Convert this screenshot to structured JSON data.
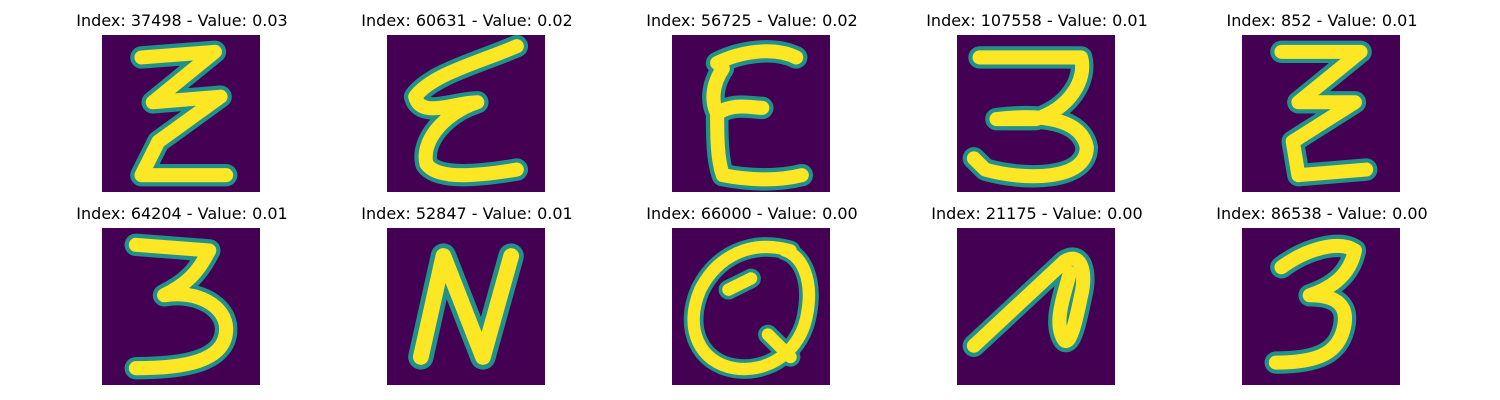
{
  "colors": {
    "background": "#ffffff",
    "image_background": "#440154",
    "stroke_core": "#fde725",
    "stroke_edge": "#21918c"
  },
  "panels": [
    {
      "title": "Index: 37498 - Value: 0.03",
      "glyph": "Z"
    },
    {
      "title": "Index: 60631 - Value: 0.02",
      "glyph": "E"
    },
    {
      "title": "Index: 56725 - Value: 0.02",
      "glyph": "E"
    },
    {
      "title": "Index: 107558 - Value: 0.01",
      "glyph": "3"
    },
    {
      "title": "Index: 852 - Value: 0.01",
      "glyph": "Z"
    },
    {
      "title": "Index: 64204 - Value: 0.01",
      "glyph": "3"
    },
    {
      "title": "Index: 52847 - Value: 0.01",
      "glyph": "N"
    },
    {
      "title": "Index: 66000 - Value: 0.00",
      "glyph": "Q"
    },
    {
      "title": "Index: 21175 - Value: 0.00",
      "glyph": "A"
    },
    {
      "title": "Index: 86538 - Value: 0.00",
      "glyph": "3"
    }
  ]
}
